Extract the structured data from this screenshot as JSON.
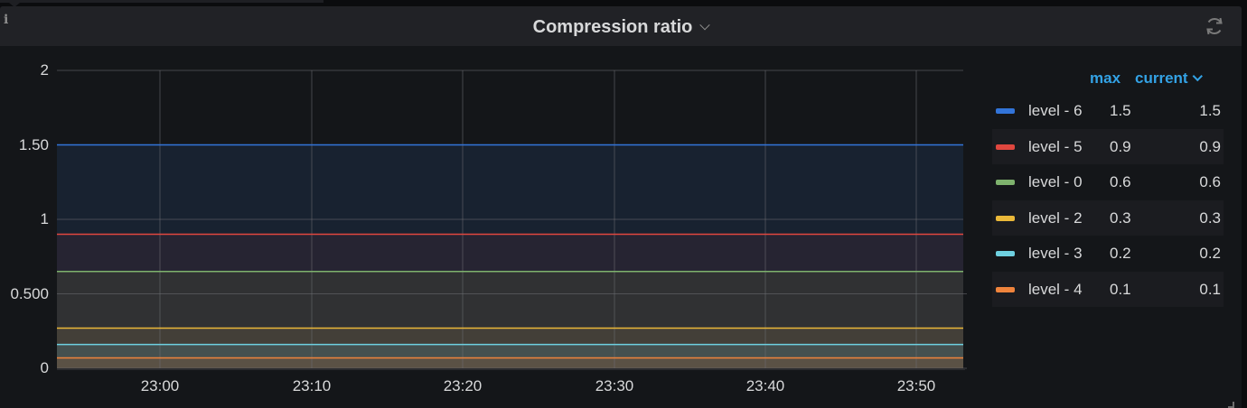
{
  "panel": {
    "title": "Compression ratio",
    "info_icon": "info-icon",
    "refresh_icon": "refresh-icon",
    "title_menu_icon": "chevron-down-icon"
  },
  "legend": {
    "columns": {
      "max": "max",
      "current": "current"
    },
    "sort_icon": "chevron-down-icon",
    "items": [
      {
        "name": "level - 6",
        "color": "#3274d9",
        "max": "1.5",
        "current": "1.5"
      },
      {
        "name": "level - 5",
        "color": "#e0473f",
        "max": "0.9",
        "current": "0.9"
      },
      {
        "name": "level - 0",
        "color": "#7eb26d",
        "max": "0.6",
        "current": "0.6"
      },
      {
        "name": "level - 2",
        "color": "#eab839",
        "max": "0.3",
        "current": "0.3"
      },
      {
        "name": "level - 3",
        "color": "#6ed0e0",
        "max": "0.2",
        "current": "0.2"
      },
      {
        "name": "level - 4",
        "color": "#ef843c",
        "max": "0.1",
        "current": "0.1"
      }
    ]
  },
  "chart_data": {
    "type": "area",
    "title": "Compression ratio",
    "xlabel": "",
    "ylabel": "",
    "x": [
      "23:00",
      "23:10",
      "23:20",
      "23:30",
      "23:40",
      "23:50"
    ],
    "x_ticks": [
      "23:00",
      "23:10",
      "23:20",
      "23:30",
      "23:40",
      "23:50"
    ],
    "y_ticks": [
      "0",
      "0.500",
      "1",
      "1.50",
      "2"
    ],
    "ylim": [
      0,
      2
    ],
    "grid": true,
    "legend_position": "right",
    "series": [
      {
        "name": "level - 6",
        "color": "#3274d9",
        "values": [
          1.5,
          1.5,
          1.5,
          1.5,
          1.5,
          1.5
        ]
      },
      {
        "name": "level - 5",
        "color": "#e0473f",
        "values": [
          0.9,
          0.9,
          0.9,
          0.9,
          0.9,
          0.9
        ]
      },
      {
        "name": "level - 0",
        "color": "#7eb26d",
        "values": [
          0.65,
          0.65,
          0.65,
          0.65,
          0.65,
          0.65
        ]
      },
      {
        "name": "level - 2",
        "color": "#eab839",
        "values": [
          0.27,
          0.27,
          0.27,
          0.27,
          0.27,
          0.27
        ]
      },
      {
        "name": "level - 3",
        "color": "#6ed0e0",
        "values": [
          0.16,
          0.16,
          0.16,
          0.16,
          0.16,
          0.16
        ]
      },
      {
        "name": "level - 4",
        "color": "#ef843c",
        "values": [
          0.07,
          0.07,
          0.07,
          0.07,
          0.07,
          0.07
        ]
      }
    ]
  }
}
